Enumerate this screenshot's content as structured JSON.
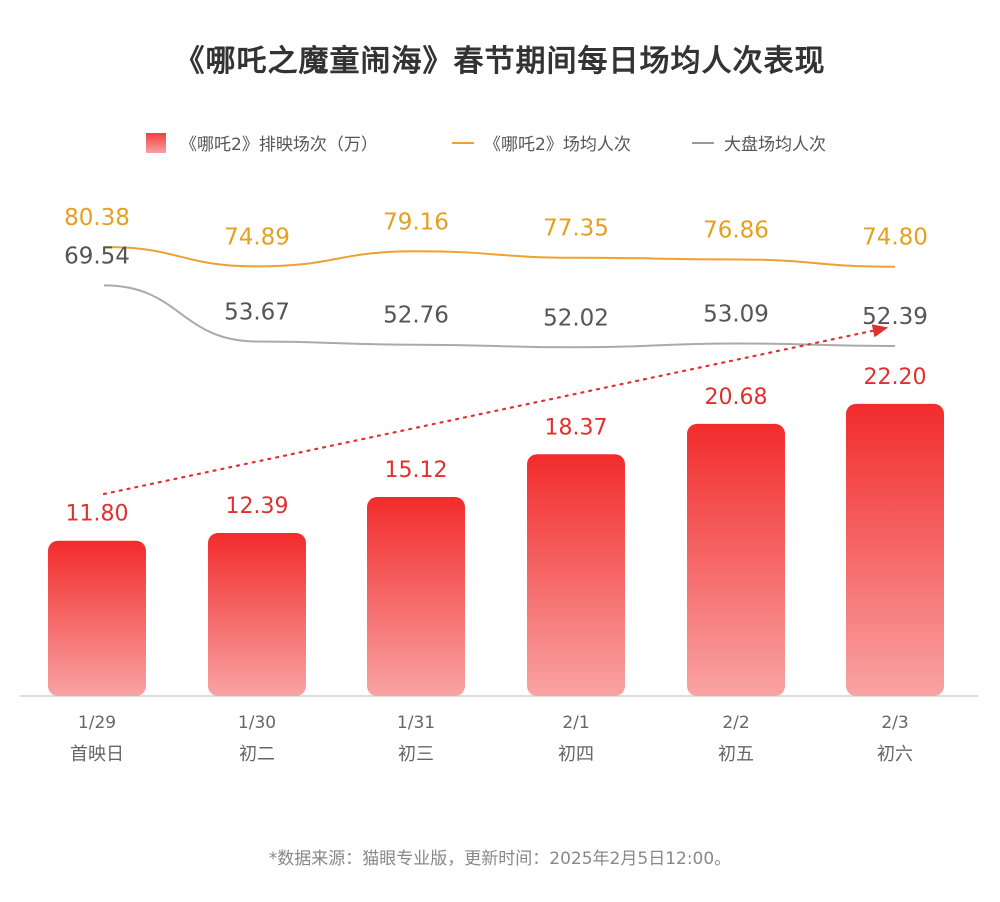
{
  "title": "《哪吒之魔童闹海》春节期间每日场均人次表现",
  "legend": {
    "bar_label": "《哪吒2》排映场次（万）",
    "line1_label": "《哪吒2》场均人次",
    "line2_label": "大盘场均人次"
  },
  "colors": {
    "bar_top": "#f22b2b",
    "bar_bottom": "#f9a3a3",
    "bar_value": "#e03030",
    "line1": "#f0a030",
    "line1_value": "#e5a020",
    "line2": "#aaaaaa",
    "line2_value": "#555555",
    "trend": "#e03030"
  },
  "source": "*数据来源：猫眼专业版，更新时间：2025年2月5日12:00。",
  "chart_data": {
    "type": "bar",
    "categories": [
      "1/29",
      "1/30",
      "1/31",
      "2/1",
      "2/2",
      "2/3"
    ],
    "subcategories": [
      "首映日",
      "初二",
      "初三",
      "初四",
      "初五",
      "初六"
    ],
    "series": [
      {
        "name": "《哪吒2》排映场次（万）",
        "type": "bar",
        "values": [
          11.8,
          12.39,
          15.12,
          18.37,
          20.68,
          22.2
        ]
      },
      {
        "name": "《哪吒2》场均人次",
        "type": "line",
        "values": [
          80.38,
          74.89,
          79.16,
          77.35,
          76.86,
          74.8
        ]
      },
      {
        "name": "大盘场均人次",
        "type": "line",
        "values": [
          69.54,
          53.67,
          52.76,
          52.02,
          53.09,
          52.39
        ]
      }
    ],
    "value_labels": {
      "bars": [
        "11.80",
        "12.39",
        "15.12",
        "18.37",
        "20.68",
        "22.20"
      ],
      "line1": [
        "80.38",
        "74.89",
        "79.16",
        "77.35",
        "76.86",
        "74.80"
      ],
      "line2": [
        "69.54",
        "53.67",
        "52.76",
        "52.02",
        "53.09",
        "52.39"
      ]
    },
    "trend_arrow": "dotted, rising from first bar to last bar",
    "legend_position": "top"
  }
}
